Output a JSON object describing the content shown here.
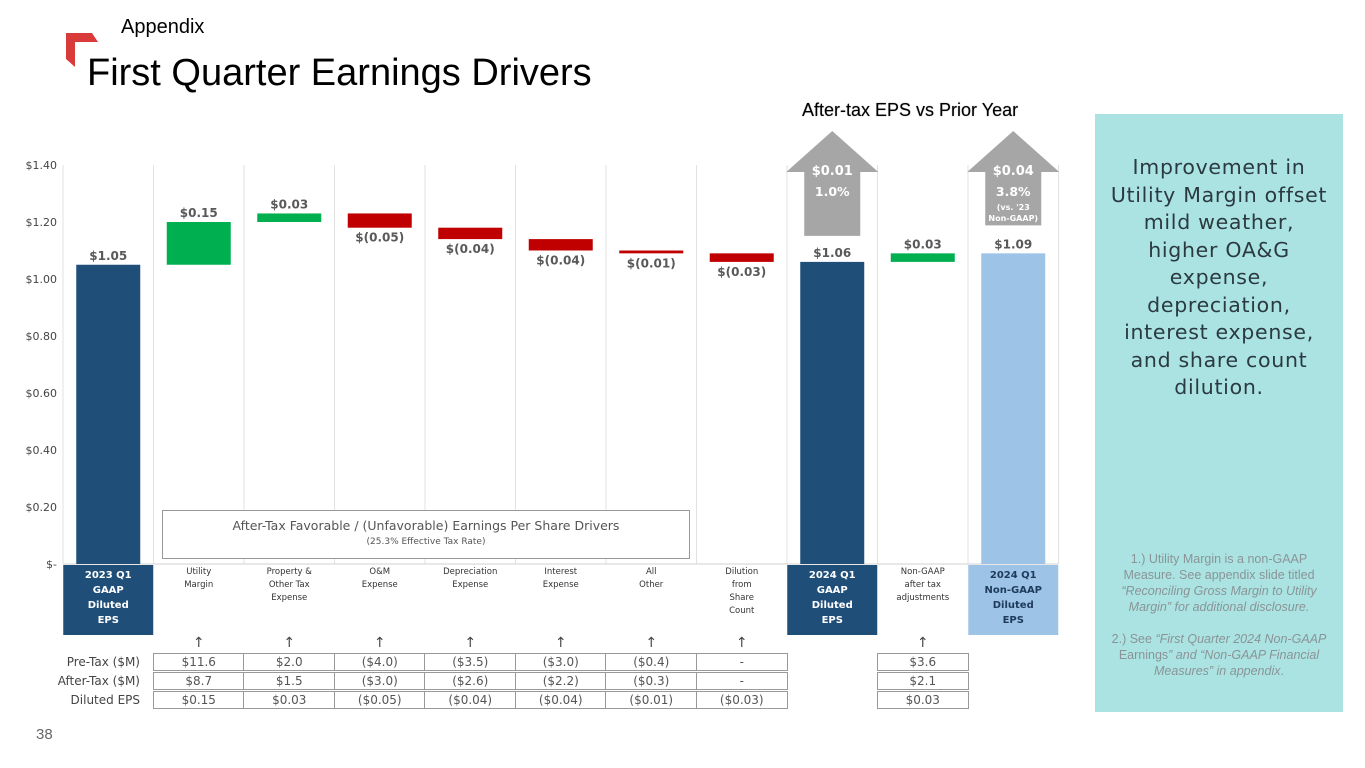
{
  "header": {
    "kicker": "Appendix",
    "title": "First Quarter Earnings Drivers",
    "chart_title": "After-tax EPS vs Prior Year"
  },
  "colors": {
    "logo_red": "#d93a3a",
    "navy": "#1f4e79",
    "light_blue": "#9dc3e6",
    "green": "#00b050",
    "red": "#c00000",
    "gray_arrow": "#a6a6a6",
    "sidebar_bg": "#abe3e3"
  },
  "chart_data": {
    "type": "bar",
    "subtype": "waterfall",
    "ylim": [
      0,
      1.4
    ],
    "yticks": [
      0,
      0.2,
      0.4,
      0.6,
      0.8,
      1.0,
      1.2,
      1.4
    ],
    "ytick_labels": [
      "$-",
      "$0.20",
      "$0.40",
      "$0.60",
      "$0.80",
      "$1.00",
      "$1.20",
      "$1.40"
    ],
    "bars": [
      {
        "category": "2023 Q1 GAAP Diluted EPS",
        "kind": "total",
        "value": 1.05,
        "label": "$1.05",
        "color": "navy"
      },
      {
        "category": "Utility Margin",
        "kind": "increase",
        "value": 0.15,
        "start": 1.05,
        "label": "$0.15",
        "color": "green"
      },
      {
        "category": "Property & Other Tax Expense",
        "kind": "increase",
        "value": 0.03,
        "start": 1.2,
        "label": "$0.03",
        "color": "green"
      },
      {
        "category": "O&M Expense",
        "kind": "decrease",
        "value": -0.05,
        "start": 1.23,
        "label": "$(0.05)",
        "color": "red"
      },
      {
        "category": "Depreciation Expense",
        "kind": "decrease",
        "value": -0.04,
        "start": 1.18,
        "label": "$(0.04)",
        "color": "red"
      },
      {
        "category": "Interest Expense",
        "kind": "decrease",
        "value": -0.04,
        "start": 1.14,
        "label": "$(0.04)",
        "color": "red"
      },
      {
        "category": "All Other",
        "kind": "decrease",
        "value": -0.01,
        "start": 1.1,
        "label": "$(0.01)",
        "color": "red"
      },
      {
        "category": "Dilution from Share Count",
        "kind": "decrease",
        "value": -0.03,
        "start": 1.09,
        "label": "$(0.03)",
        "color": "red"
      },
      {
        "category": "2024 Q1 GAAP Diluted EPS",
        "kind": "total",
        "value": 1.06,
        "label": "$1.06",
        "color": "navy"
      },
      {
        "category": "Non-GAAP after tax adjustments",
        "kind": "increase",
        "value": 0.03,
        "start": 1.06,
        "label": "$0.03",
        "color": "green"
      },
      {
        "category": "2024 Q1 Non-GAAP Diluted EPS",
        "kind": "total",
        "value": 1.09,
        "label": "$1.09",
        "color": "light_blue"
      }
    ],
    "callouts": [
      {
        "bar": 8,
        "lines": [
          "$0.01",
          "1.0%"
        ]
      },
      {
        "bar": 10,
        "lines": [
          "$0.04",
          "3.8%",
          "(vs. '23",
          "Non-GAAP)"
        ]
      }
    ],
    "drivers_box": {
      "line1": "After-Tax Favorable / (Unfavorable) Earnings Per Share Drivers",
      "line2": "(25.3% Effective Tax Rate)"
    }
  },
  "categories": [
    [
      "2023 Q1",
      "GAAP",
      "Diluted",
      "EPS"
    ],
    [
      "Utility",
      "Margin"
    ],
    [
      "Property &",
      "Other Tax",
      "Expense"
    ],
    [
      "O&M",
      "Expense"
    ],
    [
      "Depreciation",
      "Expense"
    ],
    [
      "Interest",
      "Expense"
    ],
    [
      "All",
      "Other"
    ],
    [
      "Dilution",
      "from",
      "Share",
      "Count"
    ],
    [
      "2024 Q1",
      "GAAP",
      "Diluted",
      "EPS"
    ],
    [
      "Non-GAAP",
      "after tax",
      "adjustments"
    ],
    [
      "2024 Q1",
      "Non-GAAP",
      "Diluted",
      "EPS"
    ]
  ],
  "arrow_glyph": "↑",
  "table": {
    "row_labels": [
      "Pre-Tax ($M)",
      "After-Tax ($M)",
      "Diluted EPS"
    ],
    "columns": [
      {
        "bar": 1,
        "values": [
          "$11.6",
          "$8.7",
          "$0.15"
        ]
      },
      {
        "bar": 2,
        "values": [
          "$2.0",
          "$1.5",
          "$0.03"
        ]
      },
      {
        "bar": 3,
        "values": [
          "($4.0)",
          "($3.0)",
          "($0.05)"
        ]
      },
      {
        "bar": 4,
        "values": [
          "($3.5)",
          "($2.6)",
          "($0.04)"
        ]
      },
      {
        "bar": 5,
        "values": [
          "($3.0)",
          "($2.2)",
          "($0.04)"
        ]
      },
      {
        "bar": 6,
        "values": [
          "($0.4)",
          "($0.3)",
          "($0.01)"
        ]
      },
      {
        "bar": 7,
        "values": [
          "-",
          "-",
          "($0.03)"
        ]
      },
      {
        "bar": 9,
        "values": [
          "$3.6",
          "$2.1",
          "$0.03"
        ]
      }
    ]
  },
  "sidebar": {
    "main_text": "Improvement in Utility Margin offset mild weather, higher OA&G expense, depreciation, interest expense, and share count dilution.",
    "note1_a": "1.) Utility Margin is a non-GAAP Measure. See appendix slide titled ",
    "note1_b": "“Reconciling Gross Margin to Utility Margin” for additional disclosure.",
    "note2_a": "2.) See ",
    "note2_b": "“First Quarter 2024 Non-GAAP ",
    "note2_c": "Earnings",
    "note2_d": "” and “Non-GAAP ",
    "note2_e": "Financial Measures” in appendix",
    "note2_f": "."
  },
  "footer": {
    "page_number": "38"
  }
}
